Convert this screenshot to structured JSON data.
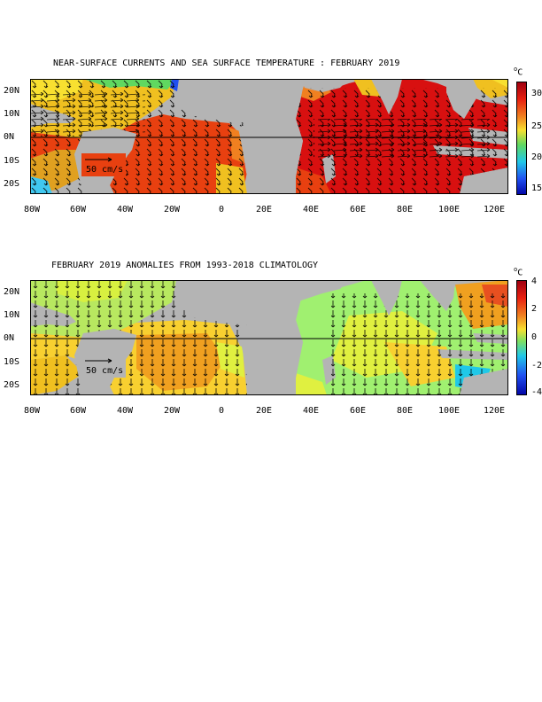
{
  "panel1": {
    "title": "NEAR-SURFACE CURRENTS AND SEA SURFACE TEMPERATURE : FEBRUARY 2019",
    "unit": "°C",
    "colorbar_ticks": [
      "30",
      "25",
      "20",
      "15"
    ],
    "scale_label": "50 cm/s"
  },
  "panel2": {
    "title": "FEBRUARY 2019 ANOMALIES FROM 1993-2018 CLIMATOLOGY",
    "unit": "°C",
    "colorbar_ticks": [
      "4",
      "2",
      "0",
      "-2",
      "-4"
    ],
    "scale_label": "50 cm/s"
  },
  "axes": {
    "lat_labels": [
      "20N",
      "10N",
      "0N",
      "10S",
      "20S"
    ],
    "lon_labels": [
      "80W",
      "60W",
      "40W",
      "20W",
      "0",
      "20E",
      "40E",
      "60E",
      "80E",
      "100E",
      "120E"
    ]
  },
  "colors": {
    "land": "#b4b4b4",
    "warm": "#e84010",
    "hot": "#d81010"
  }
}
